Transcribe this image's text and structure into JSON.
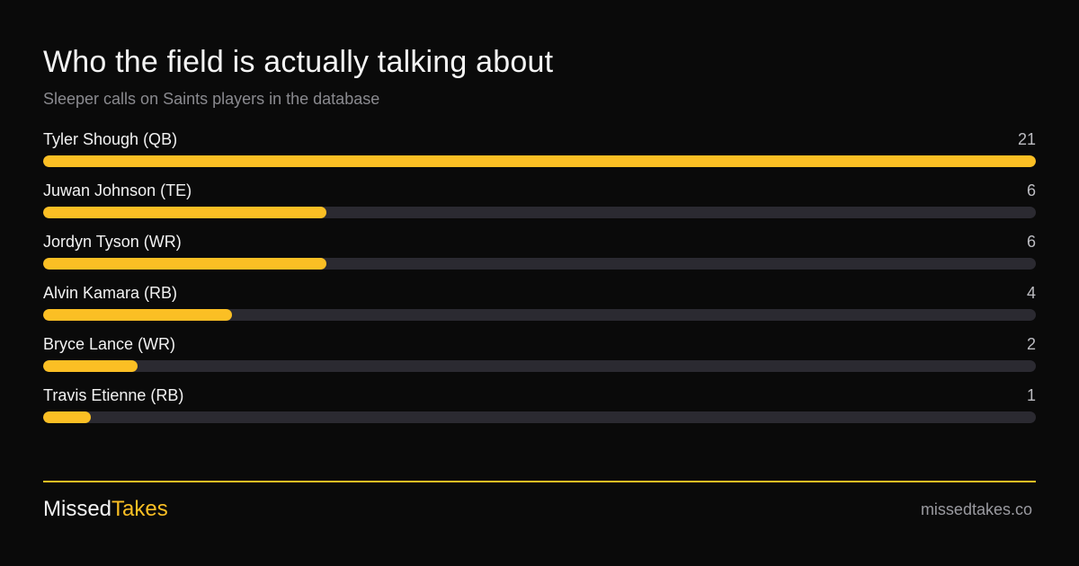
{
  "chart_data": {
    "type": "bar",
    "orientation": "horizontal",
    "title": "Who the field is actually talking about",
    "subtitle": "Sleeper calls on Saints players in the database",
    "categories": [
      "Tyler Shough (QB)",
      "Juwan Johnson (TE)",
      "Jordyn Tyson (WR)",
      "Alvin Kamara (RB)",
      "Bryce Lance (WR)",
      "Travis Etienne (RB)"
    ],
    "values": [
      21,
      6,
      6,
      4,
      2,
      1
    ],
    "xlim": [
      0,
      21
    ],
    "grid": false,
    "colors": {
      "bar": "#fbbf24",
      "track": "#2b2a31"
    }
  },
  "footer": {
    "brand_part1": "Missed",
    "brand_part2": "Takes",
    "site": "missedtakes.co",
    "accent": "#fbbf24"
  }
}
